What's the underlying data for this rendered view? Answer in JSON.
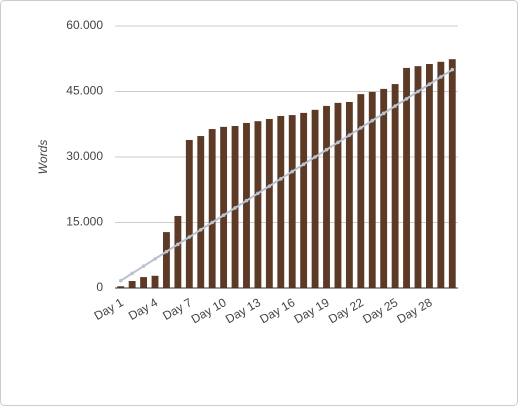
{
  "chart_data": {
    "type": "bar",
    "y_label": "Words",
    "categories": [
      "Day 1",
      null,
      null,
      "Day 4",
      null,
      null,
      "Day 7",
      null,
      null,
      "Day 10",
      null,
      null,
      "Day 13",
      null,
      null,
      "Day 16",
      null,
      null,
      "Day 19",
      null,
      null,
      "Day 22",
      null,
      null,
      "Day 25",
      null,
      null,
      "Day 28",
      null,
      null
    ],
    "series": [
      {
        "type": "bar",
        "color": "#5c3a26",
        "values": [
          400,
          1600,
          2500,
          2800,
          12800,
          16500,
          33900,
          34800,
          36400,
          36900,
          37100,
          37800,
          38200,
          38700,
          39400,
          39600,
          40100,
          40800,
          41700,
          42400,
          42600,
          44400,
          44900,
          45600,
          46700,
          50400,
          50800,
          51300,
          51800,
          52400
        ]
      },
      {
        "type": "line",
        "color": "#b9c2cf",
        "values": [
          1667,
          3333,
          5000,
          6667,
          8333,
          10000,
          11667,
          13333,
          15000,
          16667,
          18333,
          20000,
          21667,
          23333,
          25000,
          26667,
          28333,
          30000,
          31667,
          33333,
          35000,
          36667,
          38333,
          40000,
          41667,
          43333,
          45000,
          46667,
          48333,
          50000
        ]
      }
    ],
    "ylim": [
      0,
      60000
    ],
    "yticks": [
      0,
      {
        "value": 15000,
        "label": "15.000"
      },
      {
        "value": 30000,
        "label": "30.000"
      },
      {
        "value": 45000,
        "label": "45.000"
      },
      {
        "value": 60000,
        "label": "60.000"
      }
    ],
    "grid": true
  }
}
